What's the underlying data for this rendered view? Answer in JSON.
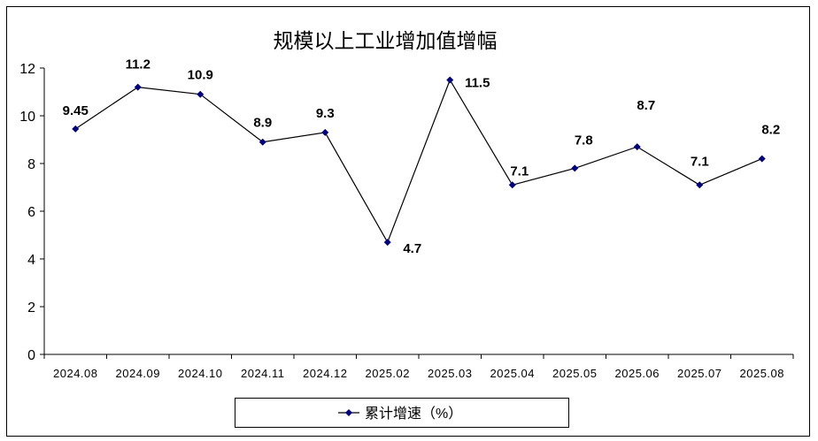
{
  "chart_data": {
    "type": "line",
    "title": "规模以上工业增加值增幅",
    "categories": [
      "2024.08",
      "2024.09",
      "2024.10",
      "2024.11",
      "2024.12",
      "2025.02",
      "2025.03",
      "2025.04",
      "2025.05",
      "2025.06",
      "2025.07",
      "2025.08"
    ],
    "series": [
      {
        "name": "累计增速（%）",
        "values": [
          9.45,
          11.2,
          10.9,
          8.9,
          9.3,
          4.7,
          11.5,
          7.1,
          7.8,
          8.7,
          7.1,
          8.2
        ],
        "labels": [
          "9.45",
          "11.2",
          "10.9",
          "8.9",
          "9.3",
          "4.7",
          "11.5",
          "7.1",
          "7.8",
          "8.7",
          "7.1",
          "8.2"
        ],
        "color": "#000080"
      }
    ],
    "yticks": [
      "0",
      "2",
      "4",
      "6",
      "8",
      "10",
      "12"
    ],
    "ylim": [
      0,
      12
    ],
    "xlabel": "",
    "ylabel": "",
    "grid": false,
    "legend": "bottom"
  }
}
